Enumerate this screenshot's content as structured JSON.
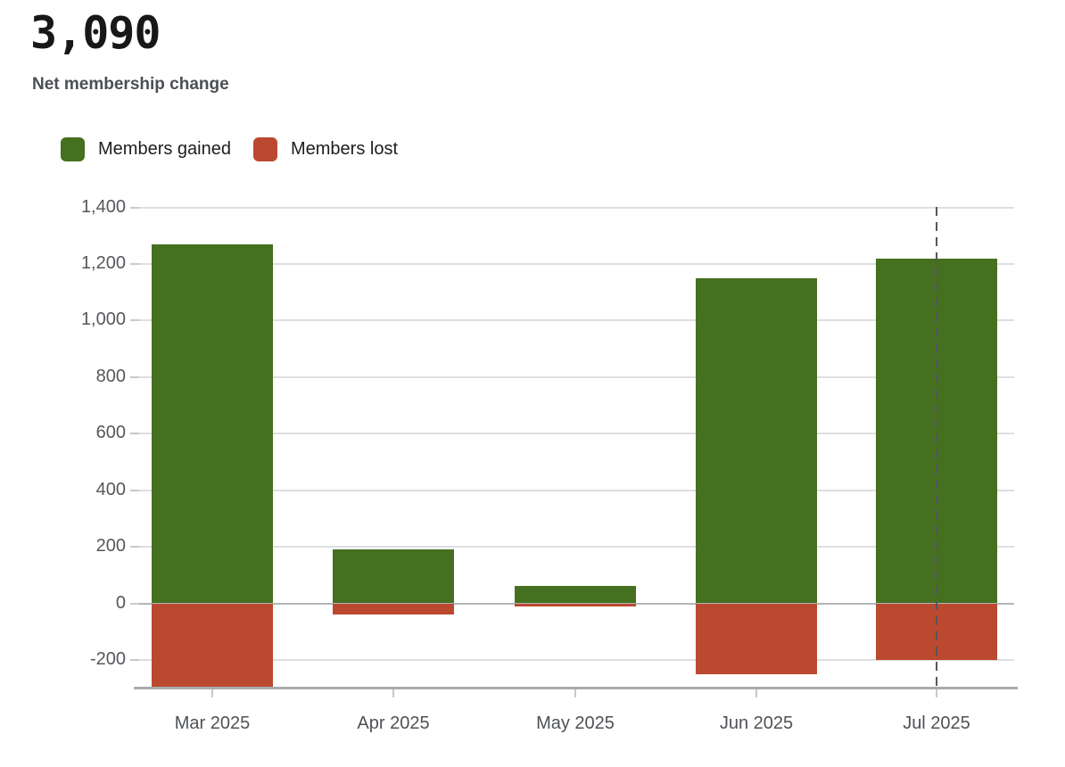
{
  "header": {
    "value": "3,090",
    "label": "Net membership change"
  },
  "chart_data": {
    "type": "bar",
    "variant": "diverging-stacked",
    "title": "3,090",
    "subtitle": "Net membership change",
    "categories": [
      "Mar 2025",
      "Apr 2025",
      "May 2025",
      "Jun 2025",
      "Jul 2025"
    ],
    "series": [
      {
        "name": "Members gained",
        "color": "#45701f",
        "values": [
          1270,
          190,
          60,
          1150,
          1220
        ]
      },
      {
        "name": "Members lost",
        "color": "#bb4930",
        "values": [
          -300,
          -40,
          -10,
          -250,
          -200
        ]
      }
    ],
    "xlabel": "",
    "ylabel": "",
    "ylim": [
      -300,
      1400
    ],
    "yticks": [
      1400,
      1200,
      1000,
      800,
      600,
      400,
      200,
      0,
      -200
    ],
    "ytick_labels": [
      "1,400",
      "1,200",
      "1,000",
      "800",
      "600",
      "400",
      "200",
      "0",
      "-200"
    ],
    "grid": true,
    "legend_position": "top-left",
    "zero_line": true,
    "annotation": {
      "type": "dashed-vertical-rule",
      "category": "Jul 2025",
      "color": "#55575a"
    }
  }
}
